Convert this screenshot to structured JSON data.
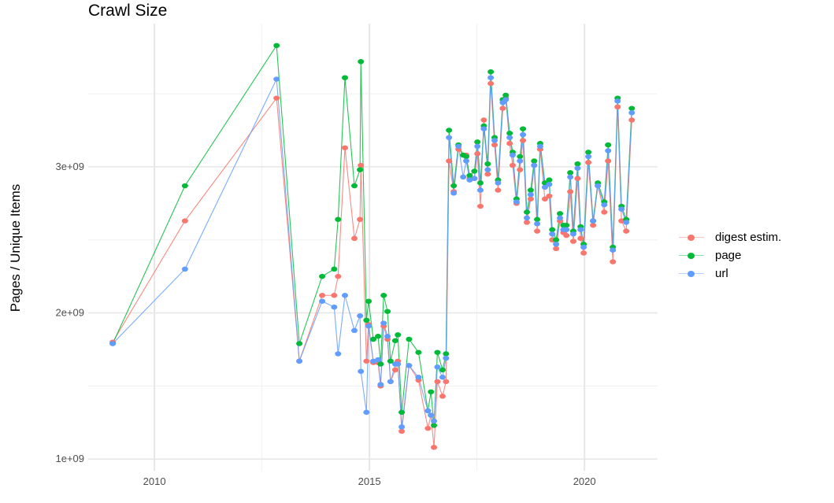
{
  "chart_data": {
    "type": "line",
    "title": "Crawl Size",
    "xlabel": "",
    "ylabel": "Pages / Unique Items",
    "xlim": [
      2008.46,
      2021.7
    ],
    "ylim": [
      920000000.0,
      3980000000.0
    ],
    "x_ticks": [
      2010,
      2015,
      2020
    ],
    "x_tick_labels": [
      "2010",
      "2015",
      "2020"
    ],
    "y_ticks": [
      1000000000.0,
      2000000000.0,
      3000000000.0
    ],
    "y_tick_labels": [
      "1e+09",
      "2e+09",
      "3e+09"
    ],
    "grid": true,
    "legend_position": "right",
    "x": [
      2009.03,
      2010.71,
      2012.84,
      2013.37,
      2013.9,
      2014.18,
      2014.27,
      2014.43,
      2014.65,
      2014.78,
      2014.8,
      2014.93,
      2014.98,
      2015.09,
      2015.2,
      2015.26,
      2015.33,
      2015.42,
      2015.49,
      2015.6,
      2015.66,
      2015.75,
      2015.92,
      2016.14,
      2016.36,
      2016.43,
      2016.5,
      2016.58,
      2016.7,
      2016.78,
      2016.85,
      2016.96,
      2017.07,
      2017.18,
      2017.25,
      2017.33,
      2017.44,
      2017.51,
      2017.58,
      2017.66,
      2017.75,
      2017.82,
      2017.91,
      2017.99,
      2018.1,
      2018.17,
      2018.26,
      2018.33,
      2018.42,
      2018.5,
      2018.57,
      2018.66,
      2018.75,
      2018.83,
      2018.9,
      2018.97,
      2019.08,
      2019.18,
      2019.25,
      2019.34,
      2019.43,
      2019.51,
      2019.58,
      2019.67,
      2019.74,
      2019.84,
      2019.91,
      2019.98,
      2020.09,
      2020.2,
      2020.31,
      2020.46,
      2020.55,
      2020.66,
      2020.77,
      2020.86,
      2020.97,
      2021.1
    ],
    "series": [
      {
        "name": "digest estim.",
        "color": "#F8766D",
        "values": [
          1800000000.0,
          2630000000.0,
          3470000000.0,
          1670000000.0,
          2120000000.0,
          2120000000.0,
          2250000000.0,
          3130000000.0,
          2510000000.0,
          2640000000.0,
          3010000000.0,
          1670000000.0,
          1920000000.0,
          1660000000.0,
          1660000000.0,
          1500000000.0,
          1910000000.0,
          1820000000.0,
          1530000000.0,
          1610000000.0,
          1670000000.0,
          1190000000.0,
          1640000000.0,
          1540000000.0,
          1210000000.0,
          1300000000.0,
          1080000000.0,
          1530000000.0,
          1430000000.0,
          1530000000.0,
          3040000000.0,
          2830000000.0,
          3120000000.0,
          3080000000.0,
          3080000000.0,
          2920000000.0,
          2920000000.0,
          3090000000.0,
          2730000000.0,
          3320000000.0,
          2950000000.0,
          3570000000.0,
          3150000000.0,
          2840000000.0,
          3400000000.0,
          3470000000.0,
          3160000000.0,
          3010000000.0,
          2750000000.0,
          2980000000.0,
          3180000000.0,
          2620000000.0,
          2780000000.0,
          3010000000.0,
          2560000000.0,
          3120000000.0,
          2780000000.0,
          2800000000.0,
          2500000000.0,
          2440000000.0,
          2630000000.0,
          2550000000.0,
          2530000000.0,
          2830000000.0,
          2490000000.0,
          2920000000.0,
          2510000000.0,
          2410000000.0,
          3030000000.0,
          2600000000.0,
          2870000000.0,
          2690000000.0,
          3040000000.0,
          2350000000.0,
          3410000000.0,
          2630000000.0,
          2560000000.0,
          3320000000.0
        ]
      },
      {
        "name": "page",
        "color": "#00BA38",
        "values": [
          1790000000.0,
          2870000000.0,
          3830000000.0,
          1790000000.0,
          2250000000.0,
          2300000000.0,
          2640000000.0,
          3610000000.0,
          2870000000.0,
          2980000000.0,
          3720000000.0,
          1950000000.0,
          2080000000.0,
          1820000000.0,
          1840000000.0,
          1650000000.0,
          2120000000.0,
          2010000000.0,
          1670000000.0,
          1810000000.0,
          1850000000.0,
          1320000000.0,
          1820000000.0,
          1730000000.0,
          1330000000.0,
          1460000000.0,
          1230000000.0,
          1730000000.0,
          1610000000.0,
          1720000000.0,
          3250000000.0,
          2870000000.0,
          3150000000.0,
          3080000000.0,
          3070000000.0,
          2940000000.0,
          2970000000.0,
          3170000000.0,
          2890000000.0,
          3280000000.0,
          3020000000.0,
          3650000000.0,
          3200000000.0,
          2910000000.0,
          3460000000.0,
          3490000000.0,
          3230000000.0,
          3100000000.0,
          2780000000.0,
          3070000000.0,
          3260000000.0,
          2690000000.0,
          2840000000.0,
          3040000000.0,
          2640000000.0,
          3160000000.0,
          2890000000.0,
          2910000000.0,
          2570000000.0,
          2500000000.0,
          2680000000.0,
          2600000000.0,
          2600000000.0,
          2960000000.0,
          2560000000.0,
          3020000000.0,
          2590000000.0,
          2470000000.0,
          3100000000.0,
          2630000000.0,
          2890000000.0,
          2760000000.0,
          3150000000.0,
          2450000000.0,
          3470000000.0,
          2730000000.0,
          2640000000.0,
          3400000000.0
        ]
      },
      {
        "name": "url",
        "color": "#619CFF",
        "values": [
          1790000000.0,
          2300000000.0,
          3600000000.0,
          1670000000.0,
          2080000000.0,
          2040000000.0,
          1720000000.0,
          2120000000.0,
          1880000000.0,
          1980000000.0,
          1600000000.0,
          1320000000.0,
          1910000000.0,
          1670000000.0,
          1680000000.0,
          1510000000.0,
          1930000000.0,
          1840000000.0,
          1530000000.0,
          1650000000.0,
          1650000000.0,
          1220000000.0,
          1640000000.0,
          1560000000.0,
          1330000000.0,
          1300000000.0,
          1260000000.0,
          1630000000.0,
          1560000000.0,
          1690000000.0,
          3200000000.0,
          2820000000.0,
          3140000000.0,
          2930000000.0,
          3040000000.0,
          2910000000.0,
          2920000000.0,
          3140000000.0,
          2840000000.0,
          3260000000.0,
          2980000000.0,
          3610000000.0,
          3180000000.0,
          2890000000.0,
          3440000000.0,
          3460000000.0,
          3200000000.0,
          3080000000.0,
          2760000000.0,
          3040000000.0,
          3220000000.0,
          2650000000.0,
          2810000000.0,
          3010000000.0,
          2610000000.0,
          3140000000.0,
          2860000000.0,
          2880000000.0,
          2540000000.0,
          2470000000.0,
          2650000000.0,
          2570000000.0,
          2570000000.0,
          2930000000.0,
          2540000000.0,
          2990000000.0,
          2570000000.0,
          2450000000.0,
          3070000000.0,
          2630000000.0,
          2870000000.0,
          2740000000.0,
          3110000000.0,
          2430000000.0,
          3450000000.0,
          2710000000.0,
          2620000000.0,
          3370000000.0
        ]
      }
    ]
  }
}
